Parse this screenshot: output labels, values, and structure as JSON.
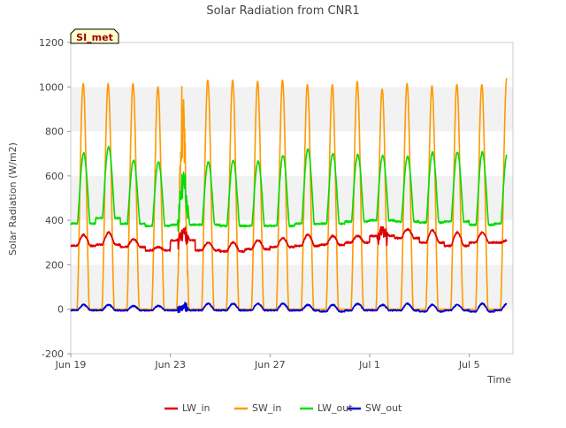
{
  "chart_data": {
    "type": "line",
    "title": "Solar Radiation from CNR1",
    "ylabel": "Solar Radiation (W/m2)",
    "xlabel": "Time",
    "station_badge": "SI_met",
    "ylim": [
      -200,
      1200
    ],
    "yticks": [
      -200,
      0,
      200,
      400,
      600,
      800,
      1000,
      1200
    ],
    "xlim": [
      "2024-06-19",
      "2024-07-06T18:00"
    ],
    "xticks": [
      {
        "date": "2024-06-19",
        "label": "Jun 19"
      },
      {
        "date": "2024-06-23",
        "label": "Jun 23"
      },
      {
        "date": "2024-06-27",
        "label": "Jun 27"
      },
      {
        "date": "2024-07-01",
        "label": "Jul 1"
      },
      {
        "date": "2024-07-05",
        "label": "Jul 5"
      }
    ],
    "grid": "horizontal bands",
    "legend_position": "bottom",
    "days": [
      "2024-06-19",
      "2024-06-20",
      "2024-06-21",
      "2024-06-22",
      "2024-06-23",
      "2024-06-24",
      "2024-06-25",
      "2024-06-26",
      "2024-06-27",
      "2024-06-28",
      "2024-06-29",
      "2024-06-30",
      "2024-07-01",
      "2024-07-02",
      "2024-07-03",
      "2024-07-04",
      "2024-07-05",
      "2024-07-06"
    ],
    "series": [
      {
        "name": "LW_in",
        "color": "#dd0000",
        "baseline": [
          285,
          290,
          280,
          265,
          310,
          265,
          260,
          270,
          280,
          285,
          290,
          300,
          330,
          320,
          300,
          285,
          300,
          300
        ],
        "peak": [
          335,
          345,
          315,
          280,
          370,
          300,
          300,
          310,
          320,
          335,
          330,
          330,
          365,
          360,
          355,
          345,
          345,
          310
        ],
        "noisy_days": [
          4,
          12
        ]
      },
      {
        "name": "SW_in",
        "color": "#ff9900",
        "baseline": [
          0,
          0,
          0,
          0,
          0,
          0,
          0,
          0,
          0,
          0,
          0,
          0,
          0,
          0,
          0,
          0,
          0,
          0
        ],
        "peak": [
          1015,
          1015,
          1015,
          1000,
          1060,
          1030,
          1030,
          1025,
          1030,
          1010,
          1010,
          1025,
          990,
          1015,
          1005,
          1010,
          1010,
          1040
        ],
        "noisy_days": [
          4
        ]
      },
      {
        "name": "LW_out",
        "color": "#00dd00",
        "baseline": [
          385,
          410,
          385,
          375,
          380,
          380,
          375,
          375,
          375,
          385,
          385,
          395,
          400,
          395,
          390,
          395,
          380,
          385
        ],
        "peak": [
          700,
          730,
          670,
          660,
          640,
          660,
          670,
          665,
          690,
          720,
          700,
          695,
          690,
          685,
          705,
          705,
          705,
          700
        ],
        "noisy_days": [
          4
        ]
      },
      {
        "name": "SW_out",
        "color": "#0000cc",
        "baseline": [
          -5,
          -5,
          -5,
          -5,
          -5,
          -5,
          -5,
          -5,
          -5,
          -5,
          -10,
          -5,
          -5,
          -5,
          -10,
          -5,
          -10,
          -5
        ],
        "peak": [
          20,
          20,
          15,
          15,
          15,
          25,
          25,
          25,
          25,
          20,
          20,
          25,
          20,
          25,
          20,
          20,
          25,
          25
        ],
        "noisy_days": [
          4
        ]
      }
    ]
  }
}
